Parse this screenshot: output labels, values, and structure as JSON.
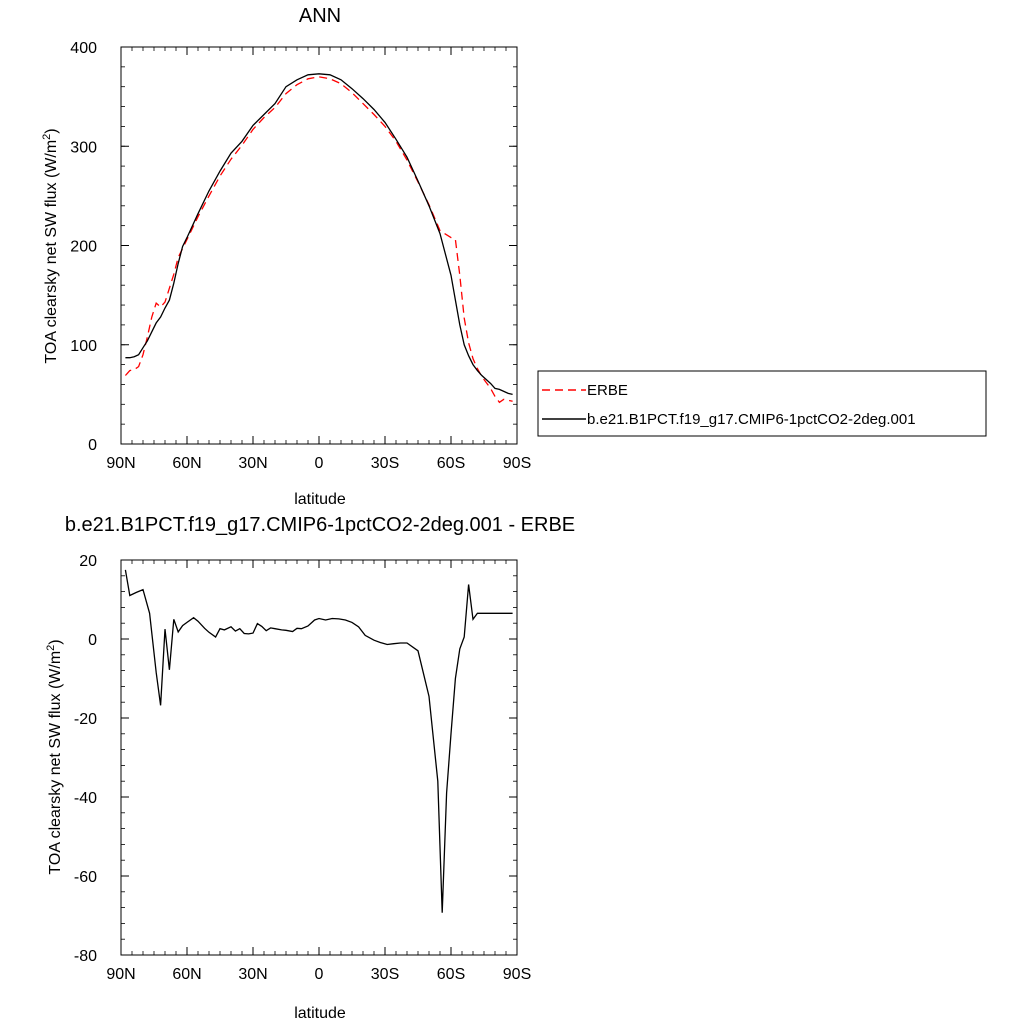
{
  "chart_data": [
    {
      "type": "line",
      "title": "ANN",
      "xlabel": "latitude",
      "ylabel": "TOA clearsky net SW flux (W/m",
      "ylabel_sup": "2",
      "ylabel_end": ")",
      "xlim": [
        90,
        -90
      ],
      "ylim": [
        0,
        400
      ],
      "xticks": [
        {
          "value": 90,
          "label": "90N"
        },
        {
          "value": 60,
          "label": "60N"
        },
        {
          "value": 30,
          "label": "30N"
        },
        {
          "value": 0,
          "label": "0"
        },
        {
          "value": -30,
          "label": "30S"
        },
        {
          "value": -60,
          "label": "60S"
        },
        {
          "value": -90,
          "label": "90S"
        }
      ],
      "yticks": [
        0,
        100,
        200,
        300,
        400
      ],
      "legend_position": "right",
      "series": [
        {
          "name": "ERBE",
          "color": "#ff0000",
          "dash": true,
          "x": [
            88,
            86,
            84,
            82,
            80,
            78,
            76,
            74,
            72,
            70,
            68,
            66,
            64,
            62,
            60,
            55,
            50,
            45,
            40,
            35,
            30,
            25,
            20,
            15,
            10,
            5,
            0,
            -5,
            -10,
            -15,
            -20,
            -25,
            -30,
            -35,
            -40,
            -45,
            -50,
            -55,
            -60,
            -62,
            -64,
            -66,
            -68,
            -70,
            -72,
            -74,
            -76,
            -78,
            -80,
            -82,
            -84,
            -86,
            -88
          ],
          "y": [
            69,
            74,
            75,
            78,
            90,
            108,
            128,
            142,
            138,
            143,
            157,
            171,
            188,
            197,
            206,
            229,
            250,
            270,
            287,
            301,
            317,
            329,
            339,
            353,
            362,
            368,
            370,
            368,
            363,
            354,
            343,
            332,
            320,
            305,
            286,
            264,
            241,
            215,
            208,
            206,
            170,
            127,
            102,
            86,
            76,
            68,
            62,
            56,
            48,
            42,
            45,
            44,
            43
          ]
        },
        {
          "name": "b.e21.B1PCT.f19_g17.CMIP6-1pctCO2-2deg.001",
          "color": "#000000",
          "dash": false,
          "x": [
            88,
            86,
            84,
            82,
            80,
            78,
            76,
            74,
            72,
            70,
            68,
            66,
            64,
            62,
            60,
            55,
            50,
            45,
            40,
            35,
            30,
            25,
            20,
            15,
            10,
            5,
            0,
            -5,
            -10,
            -15,
            -20,
            -25,
            -30,
            -35,
            -40,
            -45,
            -50,
            -55,
            -60,
            -62,
            -64,
            -66,
            -68,
            -70,
            -72,
            -74,
            -76,
            -78,
            -80,
            -82,
            -84,
            -86,
            -88
          ],
          "y": [
            87,
            87,
            88,
            90,
            97,
            104,
            113,
            122,
            128,
            137,
            145,
            162,
            182,
            199,
            208,
            232,
            255,
            275,
            293,
            305,
            321,
            332,
            343,
            360,
            367,
            372,
            373,
            372,
            367,
            358,
            348,
            337,
            324,
            307,
            289,
            265,
            240,
            212,
            170,
            145,
            120,
            100,
            89,
            80,
            74,
            69,
            65,
            61,
            56,
            55,
            53,
            51,
            50
          ]
        }
      ]
    },
    {
      "type": "line",
      "title": "b.e21.B1PCT.f19_g17.CMIP6-1pctCO2-2deg.001 - ERBE",
      "xlabel": "latitude",
      "ylabel": "TOA clearsky net SW flux (W/m",
      "ylabel_sup": "2",
      "ylabel_end": ")",
      "xlim": [
        90,
        -90
      ],
      "ylim": [
        -80,
        20
      ],
      "xticks": [
        {
          "value": 90,
          "label": "90N"
        },
        {
          "value": 60,
          "label": "60N"
        },
        {
          "value": 30,
          "label": "30N"
        },
        {
          "value": 0,
          "label": "0"
        },
        {
          "value": -30,
          "label": "30S"
        },
        {
          "value": -60,
          "label": "60S"
        },
        {
          "value": -90,
          "label": "90S"
        }
      ],
      "yticks": [
        -80,
        -60,
        -40,
        -20,
        0,
        20
      ],
      "series": [
        {
          "color": "#000000",
          "dash": false,
          "x": [
            88,
            86,
            83,
            80,
            77,
            74,
            72,
            70,
            68,
            66,
            64,
            62,
            60,
            57,
            55,
            52,
            50,
            47,
            45,
            43,
            40,
            38,
            36,
            34,
            32,
            30,
            28,
            26,
            24,
            22,
            20,
            17,
            15,
            12,
            10,
            8,
            5,
            2,
            0,
            -3,
            -6,
            -9,
            -12,
            -15,
            -18,
            -21,
            -25,
            -28,
            -31,
            -34,
            -37,
            -40,
            -45,
            -50,
            -54,
            -56,
            -58,
            -60,
            -62,
            -64,
            -66,
            -68,
            -70,
            -72,
            -74,
            -76,
            -78,
            -80,
            -82,
            -84,
            -86,
            -88
          ],
          "y": [
            17.5,
            11,
            11.8,
            12.5,
            6.5,
            -8.5,
            -16.8,
            2.5,
            -7.8,
            5,
            1.8,
            3.4,
            4.2,
            5.4,
            4.5,
            2.7,
            1.7,
            0.5,
            2.6,
            2.3,
            3.1,
            2,
            2.6,
            1.4,
            1.3,
            1.5,
            3.9,
            3.2,
            2.1,
            2.8,
            2.6,
            2.3,
            2.2,
            1.9,
            2.7,
            2.6,
            3.3,
            4.8,
            5.2,
            4.8,
            5.2,
            5.1,
            4.8,
            4.2,
            3.1,
            0.9,
            -0.3,
            -0.9,
            -1.4,
            -1.2,
            -1,
            -1,
            -3,
            -14.5,
            -36,
            -69.3,
            -39,
            -24,
            -10,
            -2.5,
            0.5,
            13.8,
            5,
            6.5,
            6.5,
            6.5,
            6.5,
            6.5,
            6.5,
            6.5,
            6.5,
            6.5
          ]
        }
      ]
    }
  ]
}
